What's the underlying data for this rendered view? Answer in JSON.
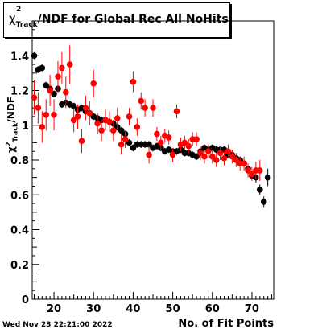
{
  "chart_data": {
    "type": "scatter",
    "title_parts": {
      "symbol": "χ",
      "superscript": "2",
      "subscript": "Track",
      "rest": "/NDF for Global Rec All NoHits"
    },
    "xlabel": "No. of Fit Points",
    "ylabel_parts": {
      "symbol": "χ",
      "superscript": "2",
      "subscript": "Track",
      "rest": "/NDF"
    },
    "xlim": [
      14.5,
      75.5
    ],
    "ylim": [
      0,
      1.6
    ],
    "x_ticks": [
      20,
      30,
      40,
      50,
      60,
      70
    ],
    "y_ticks": [
      0,
      0.2,
      0.4,
      0.6,
      0.8,
      1,
      1.2,
      1.4
    ],
    "grid": false,
    "series": [
      {
        "color": "#000000",
        "points": [
          [
            15,
            1.4,
            0.02
          ],
          [
            16,
            1.32,
            0.02
          ],
          [
            17,
            1.33,
            0.02
          ],
          [
            18,
            1.23,
            0.02
          ],
          [
            19,
            1.21,
            0.02
          ],
          [
            20,
            1.18,
            0.02
          ],
          [
            21,
            1.21,
            0.02
          ],
          [
            22,
            1.12,
            0.02
          ],
          [
            23,
            1.13,
            0.02
          ],
          [
            24,
            1.12,
            0.02
          ],
          [
            25,
            1.11,
            0.02
          ],
          [
            26,
            1.09,
            0.02
          ],
          [
            27,
            1.1,
            0.02
          ],
          [
            28,
            1.08,
            0.02
          ],
          [
            29,
            1.07,
            0.02
          ],
          [
            30,
            1.05,
            0.02
          ],
          [
            31,
            1.04,
            0.02
          ],
          [
            32,
            1.03,
            0.02
          ],
          [
            33,
            1.03,
            0.02
          ],
          [
            34,
            1.02,
            0.02
          ],
          [
            35,
            1.01,
            0.02
          ],
          [
            36,
            0.99,
            0.02
          ],
          [
            37,
            0.97,
            0.02
          ],
          [
            38,
            0.95,
            0.02
          ],
          [
            39,
            0.9,
            0.02
          ],
          [
            40,
            0.87,
            0.02
          ],
          [
            41,
            0.89,
            0.02
          ],
          [
            42,
            0.89,
            0.02
          ],
          [
            43,
            0.89,
            0.02
          ],
          [
            44,
            0.89,
            0.02
          ],
          [
            45,
            0.87,
            0.02
          ],
          [
            46,
            0.88,
            0.02
          ],
          [
            47,
            0.87,
            0.02
          ],
          [
            48,
            0.85,
            0.02
          ],
          [
            49,
            0.86,
            0.02
          ],
          [
            50,
            0.85,
            0.02
          ],
          [
            51,
            0.85,
            0.02
          ],
          [
            52,
            0.86,
            0.02
          ],
          [
            53,
            0.84,
            0.02
          ],
          [
            54,
            0.84,
            0.02
          ],
          [
            55,
            0.83,
            0.02
          ],
          [
            56,
            0.82,
            0.02
          ],
          [
            57,
            0.85,
            0.02
          ],
          [
            58,
            0.87,
            0.02
          ],
          [
            59,
            0.86,
            0.02
          ],
          [
            60,
            0.87,
            0.02
          ],
          [
            61,
            0.86,
            0.02
          ],
          [
            62,
            0.86,
            0.02
          ],
          [
            63,
            0.86,
            0.02
          ],
          [
            64,
            0.83,
            0.02
          ],
          [
            65,
            0.83,
            0.02
          ],
          [
            66,
            0.81,
            0.02
          ],
          [
            67,
            0.8,
            0.02
          ],
          [
            68,
            0.78,
            0.02
          ],
          [
            69,
            0.75,
            0.02
          ],
          [
            70,
            0.71,
            0.02
          ],
          [
            71,
            0.7,
            0.03
          ],
          [
            72,
            0.63,
            0.03
          ],
          [
            73,
            0.56,
            0.03
          ],
          [
            74,
            0.7,
            0.05
          ]
        ]
      },
      {
        "color": "#ff0000",
        "points": [
          [
            15,
            1.16,
            0.1
          ],
          [
            16,
            1.1,
            0.09
          ],
          [
            17,
            0.99,
            0.09
          ],
          [
            18,
            1.06,
            0.09
          ],
          [
            19,
            1.2,
            0.09
          ],
          [
            20,
            1.06,
            0.09
          ],
          [
            21,
            1.28,
            0.09
          ],
          [
            22,
            1.33,
            0.09
          ],
          [
            23,
            1.19,
            0.09
          ],
          [
            24,
            1.35,
            0.11
          ],
          [
            25,
            1.03,
            0.07
          ],
          [
            26,
            1.05,
            0.07
          ],
          [
            27,
            0.91,
            0.07
          ],
          [
            28,
            1.1,
            0.07
          ],
          [
            29,
            1.07,
            0.07
          ],
          [
            30,
            1.24,
            0.08
          ],
          [
            31,
            1.01,
            0.06
          ],
          [
            32,
            0.97,
            0.06
          ],
          [
            33,
            1.03,
            0.06
          ],
          [
            34,
            1.02,
            0.06
          ],
          [
            35,
            0.97,
            0.06
          ],
          [
            36,
            1.04,
            0.06
          ],
          [
            37,
            0.89,
            0.06
          ],
          [
            38,
            0.92,
            0.05
          ],
          [
            39,
            1.05,
            0.05
          ],
          [
            40,
            1.25,
            0.06
          ],
          [
            41,
            0.99,
            0.05
          ],
          [
            42,
            1.14,
            0.05
          ],
          [
            43,
            1.1,
            0.05
          ],
          [
            44,
            0.83,
            0.05
          ],
          [
            45,
            1.1,
            0.05
          ],
          [
            46,
            0.95,
            0.04
          ],
          [
            47,
            0.9,
            0.04
          ],
          [
            48,
            0.94,
            0.04
          ],
          [
            49,
            0.93,
            0.04
          ],
          [
            50,
            0.83,
            0.04
          ],
          [
            51,
            1.08,
            0.04
          ],
          [
            52,
            0.89,
            0.04
          ],
          [
            53,
            0.9,
            0.04
          ],
          [
            54,
            0.88,
            0.04
          ],
          [
            55,
            0.92,
            0.04
          ],
          [
            56,
            0.92,
            0.04
          ],
          [
            57,
            0.84,
            0.04
          ],
          [
            58,
            0.82,
            0.04
          ],
          [
            59,
            0.85,
            0.04
          ],
          [
            60,
            0.82,
            0.04
          ],
          [
            61,
            0.8,
            0.04
          ],
          [
            62,
            0.84,
            0.04
          ],
          [
            63,
            0.81,
            0.04
          ],
          [
            64,
            0.85,
            0.04
          ],
          [
            65,
            0.82,
            0.04
          ],
          [
            66,
            0.8,
            0.04
          ],
          [
            67,
            0.78,
            0.04
          ],
          [
            68,
            0.78,
            0.04
          ],
          [
            69,
            0.74,
            0.04
          ],
          [
            70,
            0.72,
            0.04
          ],
          [
            71,
            0.74,
            0.05
          ],
          [
            72,
            0.74,
            0.06
          ]
        ]
      }
    ]
  },
  "footer": {
    "date": "Wed Nov 23 22:21:00 2022"
  }
}
